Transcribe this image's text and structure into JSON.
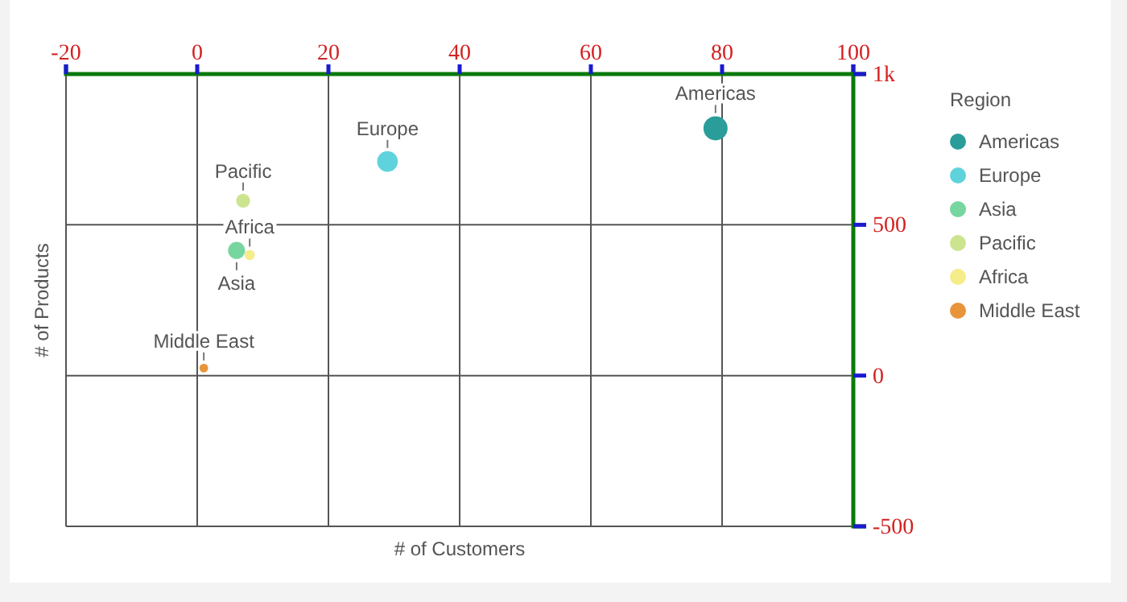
{
  "chart_data": {
    "type": "bubble",
    "xlabel": "# of Customers",
    "ylabel": "# of Products",
    "legend_title": "Region",
    "legend": "right",
    "grid": true,
    "marker": "circle",
    "xlim": [
      -20,
      100
    ],
    "xticks": [
      -20,
      0,
      20,
      40,
      60,
      80,
      100
    ],
    "ylim": [
      -500,
      1000
    ],
    "yticks": [
      -500,
      0,
      500,
      {
        "value": 1000,
        "label": "1k"
      }
    ],
    "series": [
      {
        "name": "Americas",
        "color": "#2a9d9a",
        "x": [
          79
        ],
        "values": [
          820
        ],
        "sizes": [
          1
        ]
      },
      {
        "name": "Europe",
        "color": "#5fd3dc",
        "x": [
          29
        ],
        "values": [
          710
        ],
        "sizes": [
          0.73
        ]
      },
      {
        "name": "Asia",
        "color": "#77d5a0",
        "x": [
          6
        ],
        "values": [
          415
        ],
        "sizes": [
          0.5
        ]
      },
      {
        "name": "Pacific",
        "color": "#cde48e",
        "x": [
          7
        ],
        "values": [
          580
        ],
        "sizes": [
          0.33
        ]
      },
      {
        "name": "Africa",
        "color": "#f5ec8a",
        "x": [
          8
        ],
        "values": [
          400
        ],
        "sizes": [
          0.18
        ]
      },
      {
        "name": "Middle East",
        "color": "#e8943a",
        "x": [
          1
        ],
        "values": [
          25
        ],
        "sizes": [
          0.13
        ]
      }
    ]
  }
}
